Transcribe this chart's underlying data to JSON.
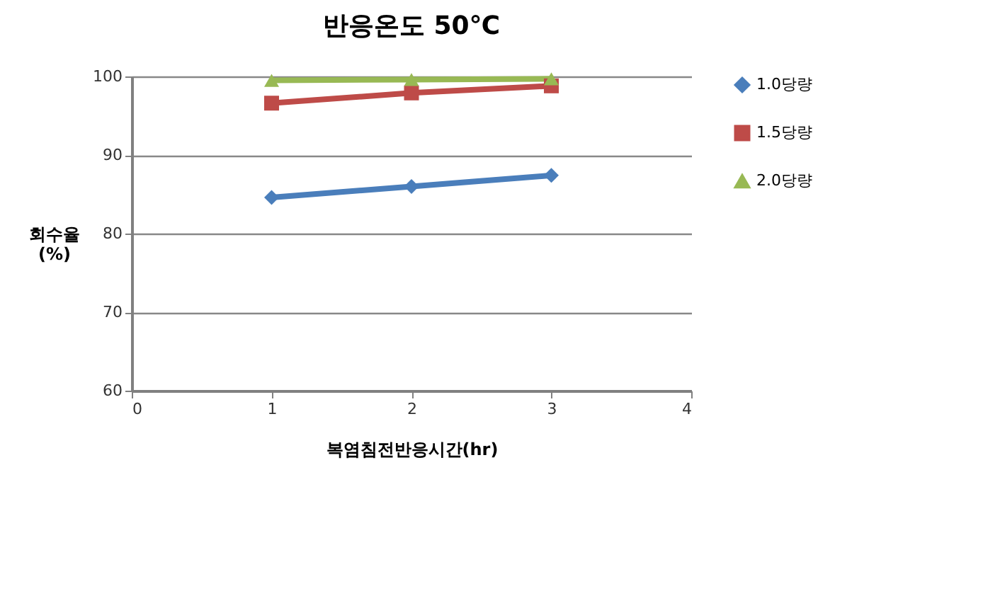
{
  "chart_data": {
    "type": "line",
    "title": "반응온도 50℃",
    "xlabel": "복염침전반응시간(hr)",
    "ylabel": "회수율\n(%)",
    "x": [
      1,
      2,
      3
    ],
    "xlim": [
      0,
      4
    ],
    "xticks": [
      0,
      1,
      2,
      3,
      4
    ],
    "ylim": [
      60,
      100
    ],
    "yticks": [
      60,
      70,
      80,
      90,
      100
    ],
    "grid": "y",
    "legend": "right",
    "series": [
      {
        "name": "1.0당량",
        "color": "#4a7ebb",
        "marker": "diamond",
        "values": [
          84.6,
          86.0,
          87.4
        ]
      },
      {
        "name": "1.5당량",
        "color": "#be4b48",
        "marker": "square",
        "values": [
          96.6,
          97.9,
          98.8
        ]
      },
      {
        "name": "2.0당량",
        "color": "#98b954",
        "marker": "triangle",
        "values": [
          99.5,
          99.6,
          99.7
        ]
      }
    ]
  }
}
